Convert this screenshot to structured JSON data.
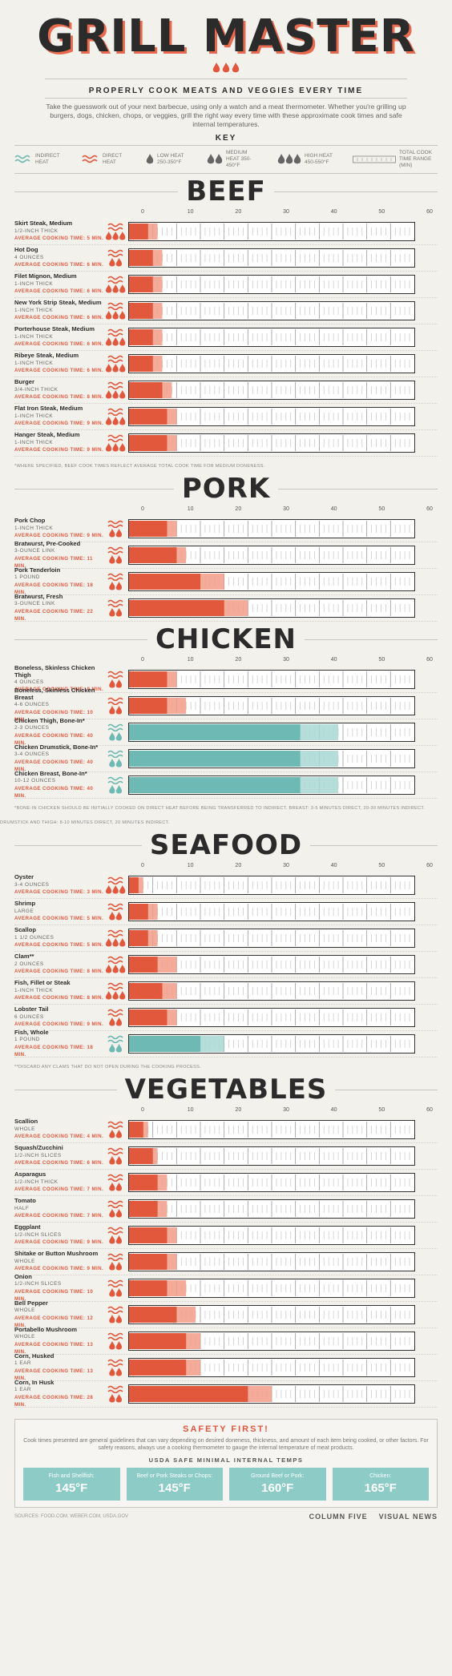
{
  "header": {
    "title": "GRILL MASTER",
    "subtitle": "PROPERLY COOK MEATS AND VEGGIES EVERY TIME",
    "intro": "Take the guesswork out of your next barbecue, using only a watch and a meat thermometer. Whether you're grilling up burgers, dogs, chicken, chops, or veggies, grill the right way every time with these approximate cook times and safe internal temperatures."
  },
  "key": {
    "title": "KEY",
    "indirect": "INDIRECT HEAT",
    "direct": "DIRECT HEAT",
    "low": "LOW HEAT 250-350°F",
    "medium": "MEDIUM HEAT 350-450°F",
    "high": "HIGH HEAT 450-550°F",
    "range": "TOTAL COOK TIME RANGE (MIN)"
  },
  "colors": {
    "direct": "#e2583d",
    "direct_light": "#f29c87",
    "indirect": "#6fb9b4",
    "indirect_light": "#a8d7d2",
    "dark": "#2b2b2b"
  },
  "chart_data": {
    "type": "bar",
    "xlim": [
      0,
      60
    ],
    "ticks": [
      0,
      10,
      20,
      30,
      40,
      50,
      60
    ],
    "sections": [
      {
        "name": "BEEF",
        "note": "*WHERE SPECIFIED, BEEF COOK TIMES REFLECT AVERAGE TOTAL COOK TIME FOR MEDIUM DONENESS.",
        "items": [
          {
            "name": "Skirt Steak, Medium",
            "size": "1/2-INCH THICK",
            "avg": "AVERAGE COOKING TIME: 5 MIN.",
            "heat": "direct",
            "level": 3,
            "min": 4,
            "max": 6
          },
          {
            "name": "Hot Dog",
            "size": "4 OUNCES",
            "avg": "AVERAGE COOKING TIME: 6 MIN.",
            "heat": "direct",
            "level": 2,
            "min": 5,
            "max": 7
          },
          {
            "name": "Filet Mignon, Medium",
            "size": "1-INCH THICK",
            "avg": "AVERAGE COOKING TIME: 6 MIN.",
            "heat": "direct",
            "level": 3,
            "min": 5,
            "max": 7
          },
          {
            "name": "New York Strip Steak, Medium",
            "size": "1-INCH THICK",
            "avg": "AVERAGE COOKING TIME: 6 MIN.",
            "heat": "direct",
            "level": 3,
            "min": 5,
            "max": 7
          },
          {
            "name": "Porterhouse Steak, Medium",
            "size": "1-INCH THICK",
            "avg": "AVERAGE COOKING TIME: 6 MIN.",
            "heat": "direct",
            "level": 3,
            "min": 5,
            "max": 7
          },
          {
            "name": "Ribeye Steak, Medium",
            "size": "1-INCH THICK",
            "avg": "AVERAGE COOKING TIME: 6 MIN.",
            "heat": "direct",
            "level": 3,
            "min": 5,
            "max": 7
          },
          {
            "name": "Burger",
            "size": "3/4-INCH THICK",
            "avg": "AVERAGE COOKING TIME: 8 MIN.",
            "heat": "direct",
            "level": 3,
            "min": 7,
            "max": 9
          },
          {
            "name": "Flat Iron Steak, Medium",
            "size": "1-INCH THICK",
            "avg": "AVERAGE COOKING TIME: 9 MIN.",
            "heat": "direct",
            "level": 3,
            "min": 8,
            "max": 10
          },
          {
            "name": "Hanger Steak, Medium",
            "size": "1-INCH THICK",
            "avg": "AVERAGE COOKING TIME: 9 MIN.",
            "heat": "direct",
            "level": 3,
            "min": 8,
            "max": 10
          }
        ]
      },
      {
        "name": "PORK",
        "note": "",
        "items": [
          {
            "name": "Pork Chop",
            "size": "1-INCH THICK",
            "avg": "AVERAGE COOKING TIME: 9 MIN.",
            "heat": "direct",
            "level": 2,
            "min": 8,
            "max": 10
          },
          {
            "name": "Bratwurst, Pre-Cooked",
            "size": "3-OUNCE LINK",
            "avg": "AVERAGE COOKING TIME: 11 MIN.",
            "heat": "direct",
            "level": 2,
            "min": 10,
            "max": 12
          },
          {
            "name": "Pork Tenderloin",
            "size": "1 POUND",
            "avg": "AVERAGE COOKING TIME: 18 MIN.",
            "heat": "direct",
            "level": 2,
            "min": 15,
            "max": 20
          },
          {
            "name": "Bratwurst, Fresh",
            "size": "3-OUNCE LINK",
            "avg": "AVERAGE COOKING TIME: 22 MIN.",
            "heat": "direct",
            "level": 2,
            "min": 20,
            "max": 25
          }
        ]
      },
      {
        "name": "CHICKEN",
        "note": "*BONE-IN CHICKEN SHOULD BE INITIALLY COOKED ON DIRECT HEAT BEFORE BEING TRANSFERRED TO INDIRECT. BREAST: 3-5 MINUTES DIRECT, 20-30 MINUTES INDIRECT. DRUMSTICK AND THIGH: 8-10 MINUTES DIRECT, 20 MINUTES INDIRECT.",
        "items": [
          {
            "name": "Boneless, Skinless Chicken Thigh",
            "size": "4 OUNCES",
            "avg": "AVERAGE COOKING TIME: 9 MIN.",
            "heat": "direct",
            "level": 2,
            "min": 8,
            "max": 10
          },
          {
            "name": "Boneless, Skinless Chicken Breast",
            "size": "4-6 OUNCES",
            "avg": "AVERAGE COOKING TIME: 10 MIN.",
            "heat": "direct",
            "level": 2,
            "min": 8,
            "max": 12
          },
          {
            "name": "Chicken Thigh, Bone-In*",
            "size": "2-3 OUNCES",
            "avg": "AVERAGE COOKING TIME: 40 MIN.",
            "heat": "indirect",
            "level": 2,
            "min": 36,
            "max": 44
          },
          {
            "name": "Chicken Drumstick, Bone-In*",
            "size": "3-4 OUNCES",
            "avg": "AVERAGE COOKING TIME: 40 MIN.",
            "heat": "indirect",
            "level": 2,
            "min": 36,
            "max": 44
          },
          {
            "name": "Chicken Breast, Bone-In*",
            "size": "10-12 OUNCES",
            "avg": "AVERAGE COOKING TIME: 40 MIN.",
            "heat": "indirect",
            "level": 2,
            "min": 36,
            "max": 44
          }
        ]
      },
      {
        "name": "SEAFOOD",
        "note": "**DISCARD ANY CLAMS THAT DO NOT OPEN DURING THE COOKING PROCESS.",
        "items": [
          {
            "name": "Oyster",
            "size": "3-4 OUNCES",
            "avg": "AVERAGE COOKING TIME: 3 MIN.",
            "heat": "direct",
            "level": 3,
            "min": 2,
            "max": 3
          },
          {
            "name": "Shrimp",
            "size": "LARGE",
            "avg": "AVERAGE COOKING TIME: 5 MIN.",
            "heat": "direct",
            "level": 2,
            "min": 4,
            "max": 6
          },
          {
            "name": "Scallop",
            "size": "1 1/2 OUNCES",
            "avg": "AVERAGE COOKING TIME: 5 MIN.",
            "heat": "direct",
            "level": 3,
            "min": 4,
            "max": 6
          },
          {
            "name": "Clam**",
            "size": "2 OUNCES",
            "avg": "AVERAGE COOKING TIME: 8 MIN.",
            "heat": "direct",
            "level": 3,
            "min": 6,
            "max": 10
          },
          {
            "name": "Fish, Fillet or Steak",
            "size": "1-INCH THICK",
            "avg": "AVERAGE COOKING TIME: 8 MIN.",
            "heat": "direct",
            "level": 3,
            "min": 7,
            "max": 10
          },
          {
            "name": "Lobster Tail",
            "size": "6 OUNCES",
            "avg": "AVERAGE COOKING TIME: 9 MIN.",
            "heat": "direct",
            "level": 2,
            "min": 8,
            "max": 10
          },
          {
            "name": "Fish, Whole",
            "size": "1 POUND",
            "avg": "AVERAGE COOKING TIME: 18 MIN.",
            "heat": "indirect",
            "level": 2,
            "min": 15,
            "max": 20
          }
        ]
      },
      {
        "name": "VEGETABLES",
        "note": "",
        "items": [
          {
            "name": "Scallion",
            "size": "WHOLE",
            "avg": "AVERAGE COOKING TIME: 4 MIN.",
            "heat": "direct",
            "level": 2,
            "min": 3,
            "max": 4
          },
          {
            "name": "Squash/Zucchini",
            "size": "1/2-INCH SLICES",
            "avg": "AVERAGE COOKING TIME: 6 MIN.",
            "heat": "direct",
            "level": 2,
            "min": 5,
            "max": 6
          },
          {
            "name": "Asparagus",
            "size": "1/2-INCH THICK",
            "avg": "AVERAGE COOKING TIME: 7 MIN.",
            "heat": "direct",
            "level": 2,
            "min": 6,
            "max": 8
          },
          {
            "name": "Tomato",
            "size": "HALF",
            "avg": "AVERAGE COOKING TIME: 7 MIN.",
            "heat": "direct",
            "level": 2,
            "min": 6,
            "max": 8
          },
          {
            "name": "Eggplant",
            "size": "1/2-INCH SLICES",
            "avg": "AVERAGE COOKING TIME: 9 MIN.",
            "heat": "direct",
            "level": 2,
            "min": 8,
            "max": 10
          },
          {
            "name": "Shitake or Button Mushroom",
            "size": "WHOLE",
            "avg": "AVERAGE COOKING TIME: 9 MIN.",
            "heat": "direct",
            "level": 2,
            "min": 8,
            "max": 10
          },
          {
            "name": "Onion",
            "size": "1/2-INCH SLICES",
            "avg": "AVERAGE COOKING TIME: 10 MIN.",
            "heat": "direct",
            "level": 2,
            "min": 8,
            "max": 12
          },
          {
            "name": "Bell Pepper",
            "size": "WHOLE",
            "avg": "AVERAGE COOKING TIME: 12 MIN.",
            "heat": "direct",
            "level": 2,
            "min": 10,
            "max": 14
          },
          {
            "name": "Portabello Mushroom",
            "size": "WHOLE",
            "avg": "AVERAGE COOKING TIME: 13 MIN.",
            "heat": "direct",
            "level": 2,
            "min": 12,
            "max": 15
          },
          {
            "name": "Corn, Husked",
            "size": "1 EAR",
            "avg": "AVERAGE COOKING TIME: 13 MIN.",
            "heat": "direct",
            "level": 2,
            "min": 12,
            "max": 15
          },
          {
            "name": "Corn, In Husk",
            "size": "1 EAR",
            "avg": "AVERAGE COOKING TIME: 28 MIN.",
            "heat": "direct",
            "level": 2,
            "min": 25,
            "max": 30
          }
        ]
      }
    ]
  },
  "safety": {
    "title": "SAFETY FIRST!",
    "desc": "Cook times presented are general guidelines that can vary depending on desired doneness, thickness, and amount of each item being cooked, or other factors. For safety reasons, always use a cooking thermometer to gauge the internal temperature of meat products.",
    "temps_title": "USDA SAFE MINIMAL INTERNAL TEMPS",
    "temps": [
      {
        "label": "Fish and Shellfish:",
        "value": "145°F"
      },
      {
        "label": "Beef or Pork Steaks or Chops:",
        "value": "145°F"
      },
      {
        "label": "Ground Beef or Pork:",
        "value": "160°F"
      },
      {
        "label": "Chicken:",
        "value": "165°F"
      }
    ]
  },
  "footer": {
    "sources": "SOURCES: FOOD.COM, WEBER.COM, USDA.GOV",
    "logo1": "COLUMN FIVE",
    "logo2": "VISUAL NEWS"
  }
}
